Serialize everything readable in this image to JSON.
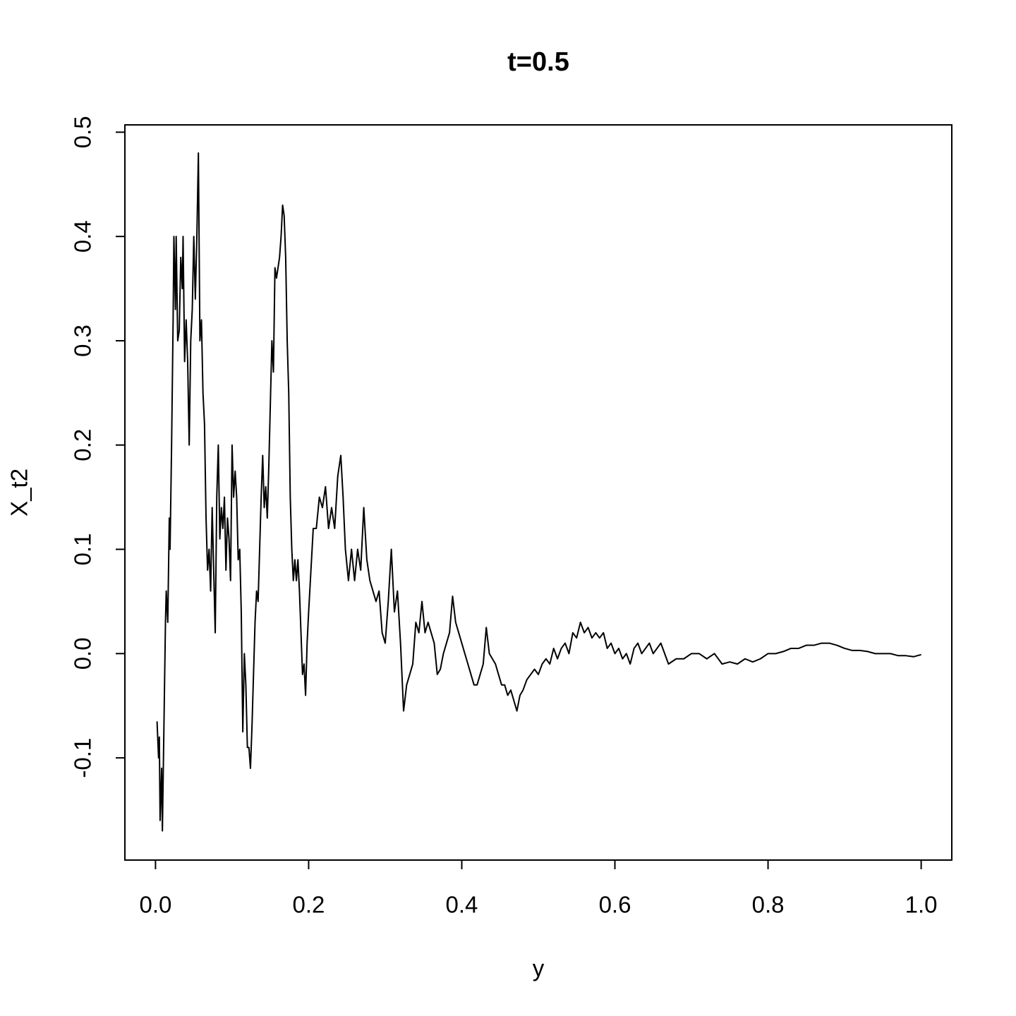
{
  "chart_data": {
    "type": "line",
    "title": "t=0.5",
    "x_label": "y",
    "y_label": "X_t2",
    "color": "#000000",
    "xlim": [
      -0.04,
      1.04
    ],
    "xticks": [
      {
        "value": 0,
        "label": "0.0"
      },
      0.2,
      0.4,
      0.6,
      0.8,
      {
        "value": 1,
        "label": "1.0"
      }
    ],
    "ylim": [
      -0.198,
      0.507
    ],
    "yticks": [
      -0.1,
      {
        "value": 0,
        "label": "0.0"
      },
      0.1,
      0.2,
      0.3,
      0.4,
      0.5
    ],
    "grid": false,
    "x": [
      0.002,
      0.004,
      0.005,
      0.006,
      0.008,
      0.009,
      0.011,
      0.013,
      0.014,
      0.016,
      0.018,
      0.019,
      0.021,
      0.023,
      0.024,
      0.026,
      0.027,
      0.029,
      0.031,
      0.033,
      0.035,
      0.036,
      0.038,
      0.04,
      0.042,
      0.044,
      0.046,
      0.048,
      0.05,
      0.052,
      0.054,
      0.056,
      0.058,
      0.06,
      0.062,
      0.064,
      0.066,
      0.068,
      0.07,
      0.072,
      0.074,
      0.076,
      0.078,
      0.08,
      0.082,
      0.084,
      0.086,
      0.088,
      0.09,
      0.092,
      0.094,
      0.096,
      0.098,
      0.1,
      0.102,
      0.104,
      0.106,
      0.108,
      0.11,
      0.112,
      0.114,
      0.116,
      0.118,
      0.12,
      0.122,
      0.124,
      0.126,
      0.128,
      0.13,
      0.132,
      0.134,
      0.136,
      0.138,
      0.14,
      0.142,
      0.144,
      0.146,
      0.148,
      0.15,
      0.152,
      0.154,
      0.156,
      0.158,
      0.16,
      0.162,
      0.164,
      0.166,
      0.168,
      0.17,
      0.172,
      0.174,
      0.176,
      0.178,
      0.18,
      0.182,
      0.184,
      0.186,
      0.188,
      0.19,
      0.192,
      0.194,
      0.196,
      0.198,
      0.2,
      0.203,
      0.206,
      0.21,
      0.214,
      0.218,
      0.222,
      0.226,
      0.23,
      0.234,
      0.238,
      0.242,
      0.245,
      0.248,
      0.252,
      0.256,
      0.26,
      0.264,
      0.268,
      0.272,
      0.276,
      0.28,
      0.284,
      0.288,
      0.292,
      0.296,
      0.3,
      0.304,
      0.308,
      0.312,
      0.316,
      0.32,
      0.324,
      0.328,
      0.332,
      0.336,
      0.34,
      0.344,
      0.348,
      0.352,
      0.356,
      0.36,
      0.364,
      0.368,
      0.372,
      0.376,
      0.38,
      0.384,
      0.388,
      0.392,
      0.396,
      0.4,
      0.404,
      0.408,
      0.412,
      0.416,
      0.42,
      0.424,
      0.428,
      0.432,
      0.436,
      0.44,
      0.444,
      0.448,
      0.452,
      0.456,
      0.46,
      0.464,
      0.468,
      0.472,
      0.476,
      0.48,
      0.485,
      0.49,
      0.495,
      0.5,
      0.505,
      0.51,
      0.515,
      0.52,
      0.525,
      0.53,
      0.535,
      0.54,
      0.545,
      0.55,
      0.555,
      0.56,
      0.565,
      0.57,
      0.575,
      0.58,
      0.585,
      0.59,
      0.595,
      0.6,
      0.605,
      0.61,
      0.615,
      0.62,
      0.625,
      0.63,
      0.635,
      0.64,
      0.645,
      0.65,
      0.655,
      0.66,
      0.665,
      0.67,
      0.68,
      0.69,
      0.7,
      0.71,
      0.72,
      0.73,
      0.74,
      0.75,
      0.76,
      0.77,
      0.78,
      0.79,
      0.8,
      0.81,
      0.82,
      0.83,
      0.84,
      0.85,
      0.86,
      0.87,
      0.88,
      0.89,
      0.9,
      0.91,
      0.92,
      0.93,
      0.94,
      0.95,
      0.96,
      0.97,
      0.98,
      0.99,
      1.0
    ],
    "values": [
      -0.065,
      -0.1,
      -0.08,
      -0.16,
      -0.11,
      -0.17,
      -0.07,
      0.03,
      0.06,
      0.03,
      0.13,
      0.1,
      0.2,
      0.32,
      0.4,
      0.33,
      0.4,
      0.3,
      0.31,
      0.38,
      0.35,
      0.4,
      0.28,
      0.32,
      0.28,
      0.2,
      0.3,
      0.33,
      0.4,
      0.34,
      0.4,
      0.48,
      0.3,
      0.32,
      0.25,
      0.22,
      0.13,
      0.08,
      0.1,
      0.06,
      0.14,
      0.08,
      0.02,
      0.15,
      0.2,
      0.11,
      0.14,
      0.12,
      0.15,
      0.08,
      0.13,
      0.11,
      0.07,
      0.2,
      0.15,
      0.175,
      0.15,
      0.09,
      0.1,
      0.04,
      -0.075,
      0.0,
      -0.03,
      -0.09,
      -0.09,
      -0.11,
      -0.07,
      -0.02,
      0.03,
      0.06,
      0.05,
      0.1,
      0.15,
      0.19,
      0.14,
      0.16,
      0.13,
      0.18,
      0.24,
      0.3,
      0.27,
      0.37,
      0.36,
      0.37,
      0.38,
      0.4,
      0.43,
      0.42,
      0.38,
      0.3,
      0.25,
      0.15,
      0.1,
      0.07,
      0.09,
      0.07,
      0.09,
      0.06,
      0.02,
      -0.02,
      -0.01,
      -0.04,
      0.01,
      0.04,
      0.08,
      0.12,
      0.12,
      0.15,
      0.14,
      0.16,
      0.12,
      0.14,
      0.12,
      0.17,
      0.19,
      0.15,
      0.1,
      0.07,
      0.1,
      0.07,
      0.1,
      0.08,
      0.14,
      0.09,
      0.07,
      0.06,
      0.05,
      0.06,
      0.02,
      0.01,
      0.05,
      0.1,
      0.04,
      0.06,
      0.01,
      -0.055,
      -0.03,
      -0.02,
      -0.01,
      0.03,
      0.02,
      0.05,
      0.02,
      0.03,
      0.02,
      0.01,
      -0.02,
      -0.015,
      0.0,
      0.01,
      0.02,
      0.055,
      0.03,
      0.02,
      0.01,
      0.0,
      -0.01,
      -0.02,
      -0.03,
      -0.03,
      -0.02,
      -0.01,
      0.025,
      0.0,
      -0.005,
      -0.01,
      -0.02,
      -0.03,
      -0.03,
      -0.04,
      -0.035,
      -0.045,
      -0.055,
      -0.04,
      -0.035,
      -0.025,
      -0.02,
      -0.015,
      -0.02,
      -0.01,
      -0.005,
      -0.01,
      0.005,
      -0.005,
      0.005,
      0.01,
      0.0,
      0.02,
      0.015,
      0.03,
      0.02,
      0.025,
      0.015,
      0.02,
      0.015,
      0.02,
      0.005,
      0.01,
      0.0,
      0.005,
      -0.005,
      0.0,
      -0.01,
      0.005,
      0.01,
      0.0,
      0.005,
      0.01,
      0.0,
      0.005,
      0.01,
      0.0,
      -0.01,
      -0.005,
      -0.005,
      0.0,
      0.0,
      -0.005,
      0.0,
      -0.01,
      -0.008,
      -0.01,
      -0.005,
      -0.008,
      -0.005,
      0.0,
      0.0,
      0.002,
      0.005,
      0.005,
      0.008,
      0.008,
      0.01,
      0.01,
      0.008,
      0.005,
      0.003,
      0.003,
      0.002,
      0.0,
      0.0,
      0.0,
      -0.002,
      -0.002,
      -0.003,
      -0.001
    ]
  }
}
